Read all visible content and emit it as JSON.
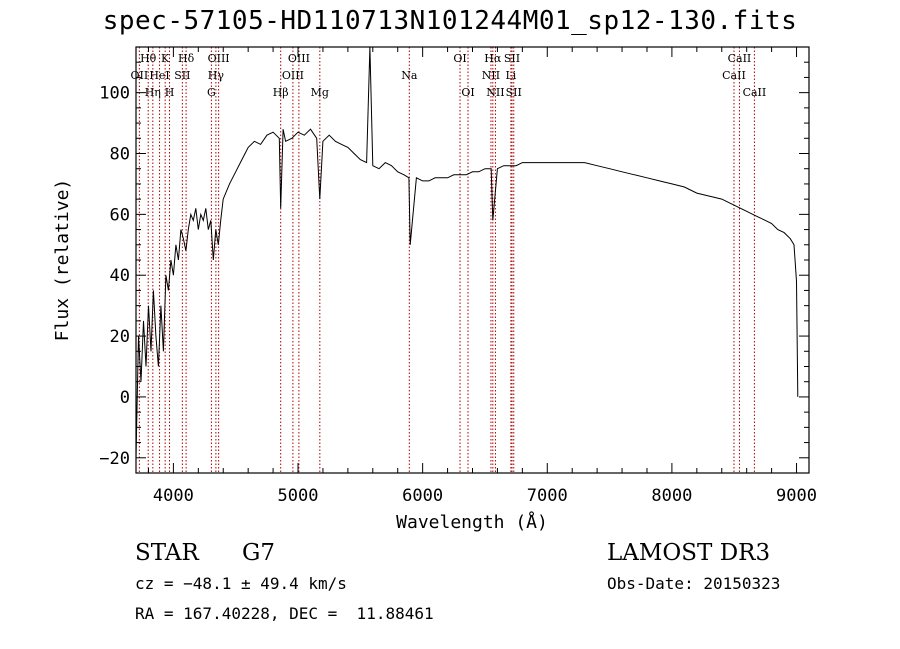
{
  "chart_data": {
    "type": "line",
    "title": "spec-57105-HD110713N101244M01_sp12-130.fits",
    "xlabel": "Wavelength (Å)",
    "ylabel": "Flux (relative)",
    "xlim": [
      3700,
      9100
    ],
    "ylim": [
      -25,
      115
    ],
    "xticks": [
      4000,
      5000,
      6000,
      7000,
      8000,
      9000
    ],
    "yticks": [
      -20,
      0,
      20,
      40,
      60,
      80,
      100
    ],
    "grid": false,
    "series": [
      {
        "x": [
          3700,
          3720,
          3740,
          3760,
          3780,
          3800,
          3820,
          3840,
          3860,
          3880,
          3900,
          3920,
          3940,
          3960,
          3980,
          4000,
          4020,
          4040,
          4060,
          4080,
          4100,
          4120,
          4140,
          4160,
          4180,
          4200,
          4220,
          4240,
          4260,
          4280,
          4300,
          4320,
          4340,
          4360,
          4380,
          4400,
          4450,
          4500,
          4550,
          4600,
          4650,
          4700,
          4750,
          4800,
          4850,
          4861,
          4880,
          4900,
          4950,
          5000,
          5050,
          5100,
          5150,
          5175,
          5200,
          5250,
          5300,
          5350,
          5400,
          5450,
          5500,
          5550,
          5577,
          5600,
          5650,
          5700,
          5750,
          5800,
          5850,
          5890,
          5900,
          5950,
          6000,
          6050,
          6100,
          6150,
          6200,
          6250,
          6300,
          6350,
          6400,
          6450,
          6500,
          6550,
          6563,
          6600,
          6650,
          6700,
          6750,
          6800,
          6900,
          7000,
          7100,
          7200,
          7300,
          7400,
          7500,
          7600,
          7700,
          7800,
          7900,
          8000,
          8100,
          8200,
          8300,
          8400,
          8450,
          8500,
          8550,
          8600,
          8650,
          8700,
          8750,
          8800,
          8850,
          8900,
          8950,
          8980,
          9000,
          9010
        ],
        "y": [
          -20,
          20,
          5,
          25,
          10,
          30,
          15,
          35,
          20,
          10,
          30,
          15,
          40,
          35,
          45,
          40,
          50,
          45,
          55,
          52,
          48,
          55,
          60,
          58,
          62,
          55,
          60,
          58,
          62,
          55,
          58,
          45,
          55,
          50,
          58,
          65,
          70,
          74,
          78,
          82,
          84,
          83,
          86,
          87,
          85,
          62,
          88,
          84,
          85,
          87,
          86,
          88,
          85,
          65,
          84,
          86,
          84,
          83,
          82,
          80,
          78,
          77,
          115,
          76,
          75,
          77,
          76,
          74,
          73,
          72,
          50,
          72,
          71,
          71,
          72,
          72,
          72,
          73,
          73,
          73,
          74,
          74,
          75,
          75,
          58,
          75,
          76,
          76,
          76,
          77,
          77,
          77,
          77,
          77,
          77,
          76,
          75,
          74,
          73,
          72,
          71,
          70,
          69,
          67,
          66,
          65,
          64,
          63,
          62,
          61,
          60,
          59,
          58,
          57,
          55,
          54,
          52,
          50,
          38,
          0
        ]
      }
    ],
    "line_ids": [
      {
        "name": "Hθ",
        "x": 3798,
        "row": 1
      },
      {
        "name": "OII",
        "x": 3727,
        "row": 2
      },
      {
        "name": "Hη",
        "x": 3835,
        "row": 3
      },
      {
        "name": "K",
        "x": 3934,
        "row": 1
      },
      {
        "name": "HeI",
        "x": 3889,
        "row": 2
      },
      {
        "name": "H",
        "x": 3969,
        "row": 3
      },
      {
        "name": "Hδ",
        "x": 4102,
        "row": 1
      },
      {
        "name": "SII",
        "x": 4072,
        "row": 2
      },
      {
        "name": "OIII",
        "x": 4363,
        "row": 1
      },
      {
        "name": "Hγ",
        "x": 4341,
        "row": 2
      },
      {
        "name": "G",
        "x": 4305,
        "row": 3
      },
      {
        "name": "Hβ",
        "x": 4861,
        "row": 3
      },
      {
        "name": "OIII",
        "x": 5007,
        "row": 1
      },
      {
        "name": "OIII",
        "x": 4959,
        "row": 2
      },
      {
        "name": "Mg",
        "x": 5175,
        "row": 3
      },
      {
        "name": "Na",
        "x": 5893,
        "row": 2
      },
      {
        "name": "OI",
        "x": 6300,
        "row": 1
      },
      {
        "name": "OI",
        "x": 6364,
        "row": 3
      },
      {
        "name": "Hα",
        "x": 6563,
        "row": 1
      },
      {
        "name": "NII",
        "x": 6548,
        "row": 2
      },
      {
        "name": "NII",
        "x": 6584,
        "row": 3
      },
      {
        "name": "SII",
        "x": 6717,
        "row": 1
      },
      {
        "name": "Li",
        "x": 6708,
        "row": 2
      },
      {
        "name": "SII",
        "x": 6731,
        "row": 3
      },
      {
        "name": "CaII",
        "x": 8542,
        "row": 1
      },
      {
        "name": "CaII",
        "x": 8498,
        "row": 2
      },
      {
        "name": "CaII",
        "x": 8662,
        "row": 3
      }
    ]
  },
  "info": {
    "class": "STAR",
    "subclass": "G7",
    "survey": "LAMOST DR3",
    "cz": "cz = −48.1 ± 49.4 km/s",
    "obs_date": "Obs-Date: 20150323",
    "radec": "RA = 167.40228, DEC =  11.88461"
  },
  "colors": {
    "line_marker": "#b00000",
    "spectrum": "#000000"
  }
}
